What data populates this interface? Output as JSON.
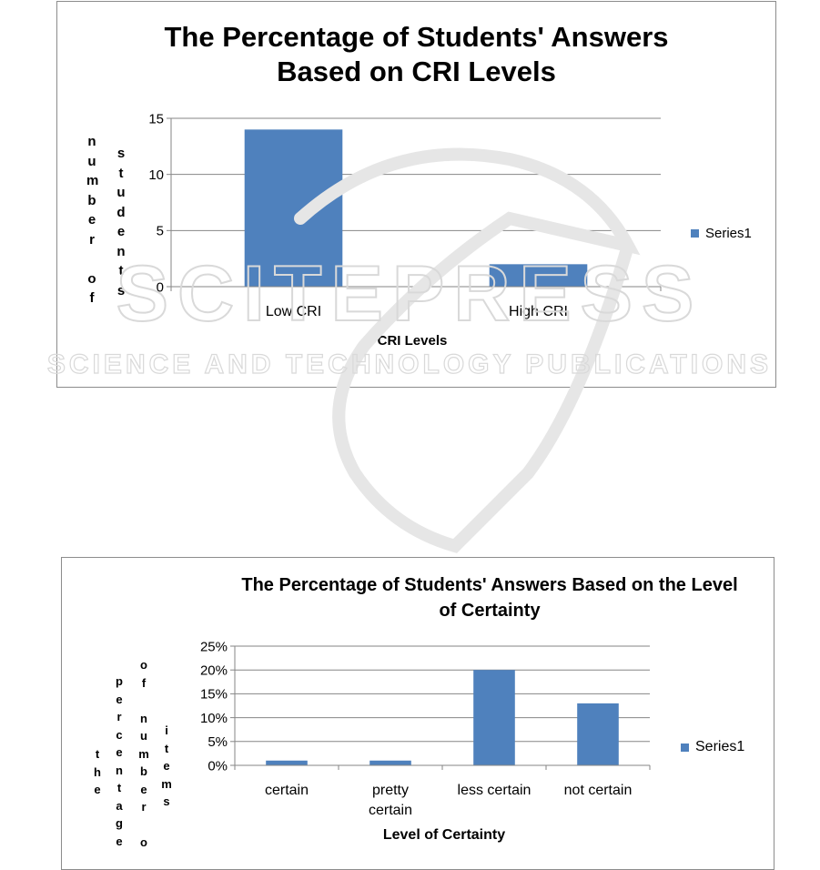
{
  "chart_data": [
    {
      "type": "bar",
      "title_lines": [
        "The Percentage of Students' Answers",
        "Based on CRI Levels"
      ],
      "categories": [
        "Low CRI",
        "High CRI"
      ],
      "series": [
        {
          "name": "Series1",
          "values": [
            14,
            2
          ]
        }
      ],
      "xlabel": "CRI Levels",
      "ylabel_columns": [
        "number of",
        "students"
      ],
      "ylim": [
        0,
        15
      ],
      "yticks": [
        "0",
        "5",
        "10",
        "15"
      ],
      "ytick_values": [
        0,
        5,
        10,
        15
      ],
      "grid": true,
      "legend": "right",
      "bar_color": "#4f81bd"
    },
    {
      "type": "bar",
      "title_lines": [
        "The Percentage of Students' Answers Based on the Level",
        "of Certainty"
      ],
      "categories": [
        [
          "certain"
        ],
        [
          "pretty",
          "certain"
        ],
        [
          "less certain"
        ],
        [
          "not certain"
        ]
      ],
      "series": [
        {
          "name": "Series1",
          "values": [
            0.01,
            0.01,
            0.2,
            0.13
          ]
        }
      ],
      "xlabel": "Level of Certainty",
      "ylabel_columns": [
        "the",
        "percentage",
        "of number o",
        "items"
      ],
      "ylim": [
        0,
        0.25
      ],
      "yticks": [
        "0%",
        "5%",
        "10%",
        "15%",
        "20%",
        "25%"
      ],
      "ytick_values": [
        0,
        0.05,
        0.1,
        0.15,
        0.2,
        0.25
      ],
      "grid": true,
      "legend": "right",
      "bar_color": "#4f81bd"
    }
  ],
  "watermark": {
    "line1": "SCITEPRESS",
    "line2": "SCIENCE AND TECHNOLOGY PUBLICATIONS"
  }
}
